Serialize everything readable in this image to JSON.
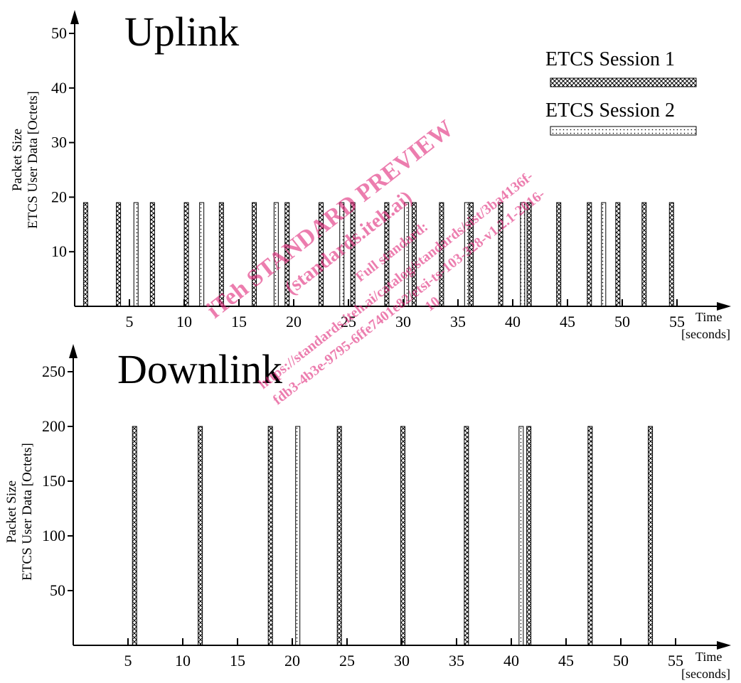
{
  "legend": {
    "session1": "ETCS  Session 1",
    "session2": "ETCS  Session 2"
  },
  "watermark": {
    "line1": "iTeh STANDARD PREVIEW",
    "line2": "(standards.iteh.ai)",
    "line3": "Full standard:",
    "line4": "https://standards.iteh.ai/catalog/standards/sist/3ba4136f-",
    "line5": "fdb3-4b3e-9795-6ffe7401e82/etsi-ts-103-328-v1.2.1-2016-",
    "line6": "10"
  },
  "chart_data": [
    {
      "type": "bar",
      "title": "Uplink",
      "ylabel_line1": "Packet  Size",
      "ylabel_line2": "ETCS User Data [Octets]",
      "xlabel_line1": "Time",
      "xlabel_line2": "[seconds]",
      "xlim": [
        0,
        60
      ],
      "ylim": [
        0,
        50
      ],
      "xticks": [
        5,
        10,
        15,
        20,
        25,
        30,
        35,
        40,
        45,
        50,
        55
      ],
      "yticks": [
        10,
        20,
        30,
        40,
        50
      ],
      "bar_value": 19,
      "series": [
        {
          "name": "ETCS  Session 1",
          "pattern": "crosshatch",
          "x": [
            1.0,
            4.0,
            7.1,
            10.2,
            13.4,
            16.4,
            19.4,
            22.5,
            25.4,
            28.5,
            31.0,
            33.5,
            36.2,
            38.9,
            41.5,
            44.2,
            47.0,
            49.6,
            52.0,
            54.5
          ]
        },
        {
          "name": "ETCS  Session 2",
          "pattern": "dotted",
          "x": [
            5.6,
            11.6,
            18.4,
            24.4,
            30.3,
            35.8,
            40.9,
            48.3
          ]
        }
      ]
    },
    {
      "type": "bar",
      "title": "Downlink",
      "ylabel_line1": "Packet  Size",
      "ylabel_line2": "ETCS User Data [Octets]",
      "xlabel_line1": "Time",
      "xlabel_line2": "[seconds]",
      "xlim": [
        0,
        60
      ],
      "ylim": [
        0,
        250
      ],
      "xticks": [
        5,
        10,
        15,
        20,
        25,
        30,
        35,
        40,
        45,
        50,
        55
      ],
      "yticks": [
        50,
        100,
        150,
        200,
        250
      ],
      "bar_value": 200,
      "series": [
        {
          "name": "ETCS  Session 1",
          "pattern": "crosshatch",
          "x": [
            5.6,
            11.6,
            18.0,
            24.3,
            30.1,
            35.9,
            41.6,
            47.2,
            52.7
          ]
        },
        {
          "name": "ETCS  Session 2",
          "pattern": "dotted",
          "x": [
            20.5,
            40.9
          ]
        }
      ]
    }
  ]
}
